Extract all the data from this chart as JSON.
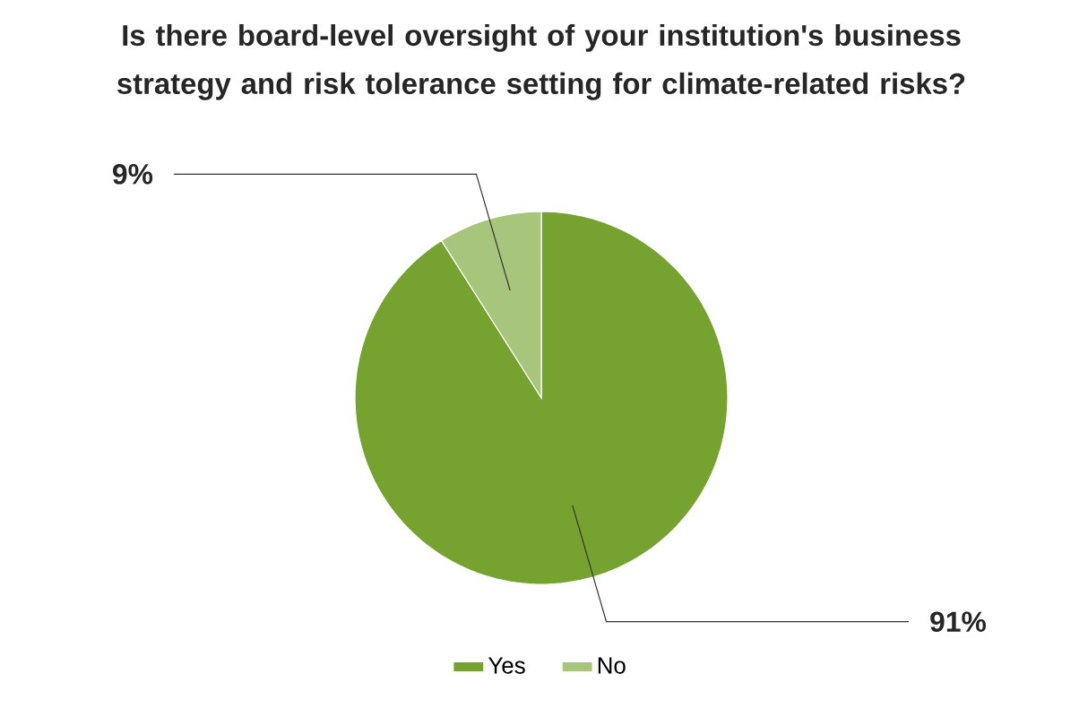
{
  "chart_data": {
    "type": "pie",
    "title": "Is there board-level oversight of your institution's business strategy and risk tolerance setting for climate-related risks?",
    "categories": [
      "Yes",
      "No"
    ],
    "values": [
      91,
      9
    ],
    "colors": [
      "#76a22f",
      "#a8c57c"
    ],
    "value_labels": [
      "91%",
      "9%"
    ],
    "legend": "bottom"
  }
}
